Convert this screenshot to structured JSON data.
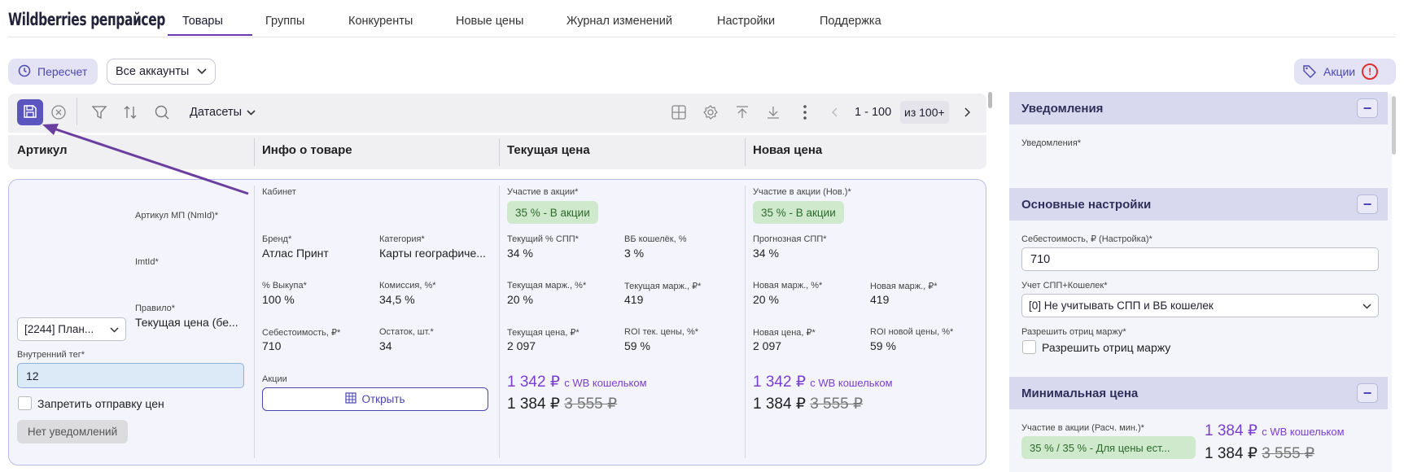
{
  "app": {
    "title": "Wildberries репрайсер"
  },
  "nav": {
    "tabs": [
      "Товары",
      "Группы",
      "Конкуренты",
      "Новые цены",
      "Журнал изменений",
      "Настройки",
      "Поддержка"
    ],
    "active": "Товары"
  },
  "toolbar_top": {
    "recalc": "Пересчет",
    "accounts": "Все аккаунты",
    "promo": "Акции",
    "alert": "!"
  },
  "grid_toolbar": {
    "datasets": "Датасеты",
    "range": "1 - 100",
    "total": "из 100+"
  },
  "columns": [
    "Артикул",
    "Инфо о товаре",
    "Текущая цена",
    "Новая цена"
  ],
  "row": {
    "article": {
      "mp_label": "Артикул МП (NmId)*",
      "imtid_label": "ImtId*",
      "rule_label": "Правило*",
      "rule_value": "Текущая цена (бе...",
      "group_select": "[2244] План...",
      "tag_label": "Внутренний тег*",
      "tag_value": "12",
      "forbid_label": "Запретить отправку цен",
      "notify_btn": "Нет уведомлений"
    },
    "info": {
      "cabinet_label": "Кабинет",
      "brand_label": "Бренд*",
      "brand": "Атлас Принт",
      "category_label": "Категория*",
      "category": "Карты географиче...",
      "buyout_label": "% Выкупа*",
      "buyout": "100 %",
      "commission_label": "Комиссия, %*",
      "commission": "34,5 %",
      "cost_label": "Себестоимость, ₽*",
      "cost": "710",
      "stock_label": "Остаток, шт.*",
      "stock": "34",
      "promo_label": "Акции",
      "open_btn": "Открыть"
    },
    "current": {
      "promo_label": "Участие в акции*",
      "promo_badge": "35 % - В акции",
      "spp_label": "Текущий % СПП*",
      "spp": "34 %",
      "wallet_label": "ВБ кошелёк, %",
      "wallet": "3 %",
      "margin_pct_label": "Текущая марж., %*",
      "margin_pct": "20 %",
      "margin_rub_label": "Текущая марж., ₽*",
      "margin_rub": "419",
      "price_label": "Текущая цена, ₽*",
      "price": "2 097",
      "roi_label": "ROI тек. цены, %*",
      "roi": "59 %",
      "wb_price": "1 342 ₽",
      "wb_suffix": "с WB кошельком",
      "price_main": "1 384 ₽",
      "price_old": "3 555 ₽"
    },
    "new": {
      "promo_label": "Участие в акции (Нов.)*",
      "promo_badge": "35 % - В акции",
      "spp_label": "Прогнозная СПП*",
      "spp": "34 %",
      "margin_pct_label": "Новая марж., %*",
      "margin_pct": "20 %",
      "margin_rub_label": "Новая марж., ₽*",
      "margin_rub": "419",
      "price_label": "Новая цена, ₽*",
      "price": "2 097",
      "roi_label": "ROI новой цены, %*",
      "roi": "59 %",
      "wb_price": "1 342 ₽",
      "wb_suffix": "с WB кошельком",
      "price_main": "1 384 ₽",
      "price_old": "3 555 ₽"
    }
  },
  "right_panel": {
    "notifications": {
      "title": "Уведомления",
      "label": "Уведомления*"
    },
    "main_settings": {
      "title": "Основные настройки",
      "cost_label": "Себестоимость, ₽ (Настройка)*",
      "cost_value": "710",
      "spp_label": "Учет СПП+Кошелек*",
      "spp_value": "[0] Не учитывать СПП и ВБ кошелек",
      "neg_label": "Разрешить отриц маржу*",
      "neg_check": "Разрешить отриц маржу"
    },
    "min_price": {
      "title": "Минимальная цена",
      "promo_label": "Участие в акции (Расч. мин.)*",
      "promo_badge": "35 % / 35 % - Для цены ест...",
      "wb_price": "1 384 ₽",
      "wb_suffix": "с WB кошельком",
      "price_main": "1 384 ₽",
      "price_old": "3 555 ₽"
    }
  }
}
